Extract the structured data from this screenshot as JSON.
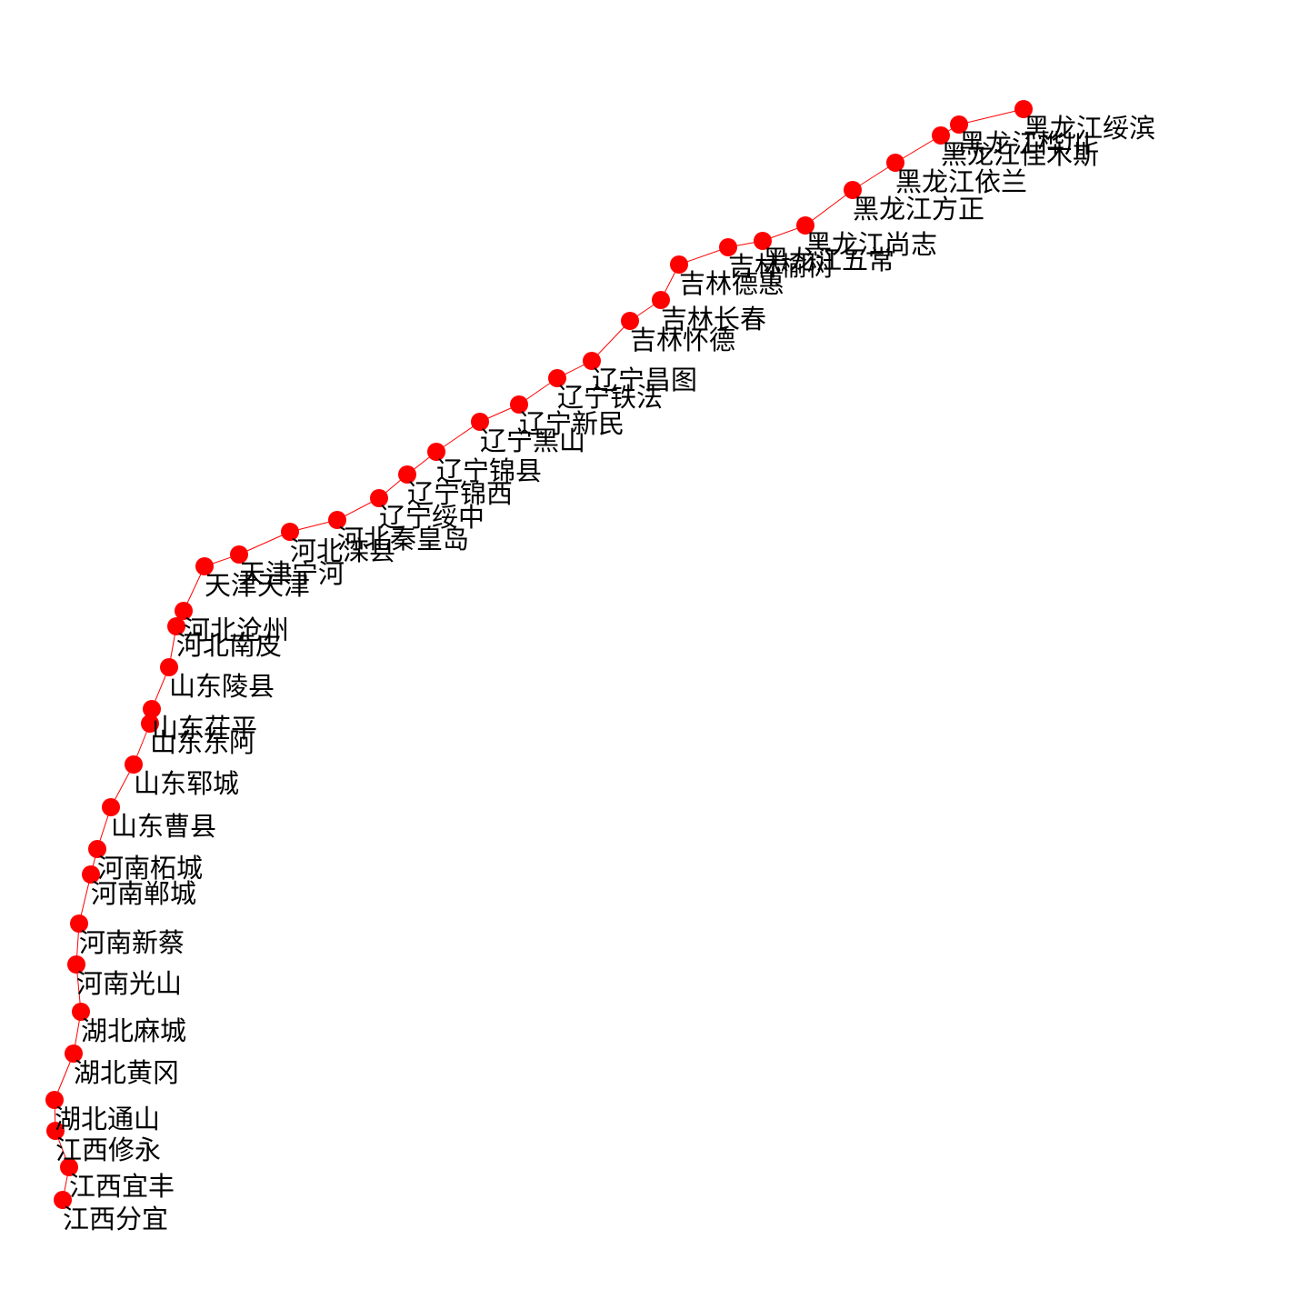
{
  "diagram": {
    "type": "route-path",
    "node_color": "#ff0000",
    "edge_color": "#ff0000",
    "label_color": "#000000",
    "nodes": [
      {
        "id": "n1",
        "label": "黑龙江绥滨"
      },
      {
        "id": "n2",
        "label": "黑龙江桦川"
      },
      {
        "id": "n3",
        "label": "黑龙江佳木斯"
      },
      {
        "id": "n4",
        "label": "黑龙江依兰"
      },
      {
        "id": "n5",
        "label": "黑龙江方正"
      },
      {
        "id": "n6",
        "label": "黑龙江尚志"
      },
      {
        "id": "n7",
        "label": "黑龙江五常"
      },
      {
        "id": "n8",
        "label": "吉林榆树"
      },
      {
        "id": "n9",
        "label": "吉林德惠"
      },
      {
        "id": "n10",
        "label": "吉林长春"
      },
      {
        "id": "n11",
        "label": "吉林怀德"
      },
      {
        "id": "n12",
        "label": "辽宁昌图"
      },
      {
        "id": "n13",
        "label": "辽宁铁法"
      },
      {
        "id": "n14",
        "label": "辽宁新民"
      },
      {
        "id": "n15",
        "label": "辽宁黑山"
      },
      {
        "id": "n16",
        "label": "辽宁锦县"
      },
      {
        "id": "n17",
        "label": "辽宁锦西"
      },
      {
        "id": "n18",
        "label": "辽宁绥中"
      },
      {
        "id": "n19",
        "label": "河北秦皇岛"
      },
      {
        "id": "n20",
        "label": "河北滦县"
      },
      {
        "id": "n21",
        "label": "天津宁河"
      },
      {
        "id": "n22",
        "label": "天津天津"
      },
      {
        "id": "n23",
        "label": "河北沧州"
      },
      {
        "id": "n24",
        "label": "河北南皮"
      },
      {
        "id": "n25",
        "label": "山东陵县"
      },
      {
        "id": "n26",
        "label": "山东茌平"
      },
      {
        "id": "n27",
        "label": "山东东阿"
      },
      {
        "id": "n28",
        "label": "山东郓城"
      },
      {
        "id": "n29",
        "label": "山东曹县"
      },
      {
        "id": "n30",
        "label": "河南柘城"
      },
      {
        "id": "n31",
        "label": "河南郸城"
      },
      {
        "id": "n32",
        "label": "河南新蔡"
      },
      {
        "id": "n33",
        "label": "河南光山"
      },
      {
        "id": "n34",
        "label": "湖北麻城"
      },
      {
        "id": "n35",
        "label": "湖北黄冈"
      },
      {
        "id": "n36",
        "label": "湖北通山"
      },
      {
        "id": "n37",
        "label": "江西修永"
      },
      {
        "id": "n38",
        "label": "江西宜丰"
      },
      {
        "id": "n39",
        "label": "江西分宜"
      }
    ]
  }
}
